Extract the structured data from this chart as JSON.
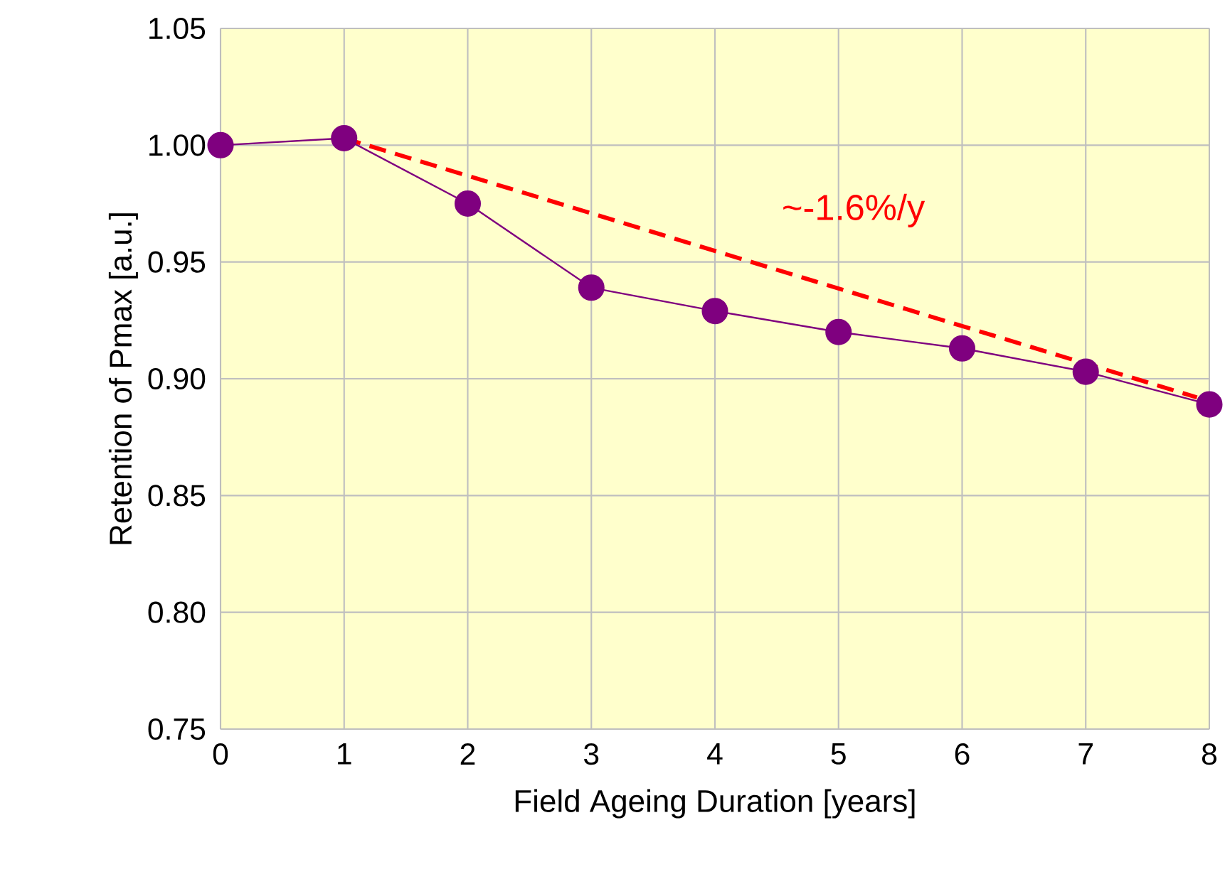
{
  "chart_data": {
    "type": "line",
    "xlabel": "Field Ageing Duration [years]",
    "ylabel": "Retention of Pmax [a.u.]",
    "x": [
      0,
      1,
      2,
      3,
      4,
      5,
      6,
      7,
      8
    ],
    "series": [
      {
        "color": "#7f007f",
        "values": [
          1.0,
          1.003,
          0.975,
          0.939,
          0.929,
          0.92,
          0.913,
          0.903,
          0.889
        ],
        "marker": "circle",
        "line_style": "solid"
      },
      {
        "type": "line",
        "color": "#ff0000",
        "x": [
          1,
          7.9
        ],
        "values": [
          1.003,
          0.892
        ],
        "marker": "none",
        "line_style": "dashed"
      }
    ],
    "annotations": [
      "~-1.6%/y"
    ],
    "xlim": [
      0,
      8
    ],
    "xticks": [
      0,
      1,
      2,
      3,
      4,
      5,
      6,
      7,
      8
    ],
    "ylim": [
      0.75,
      1.05
    ],
    "yticks": [
      {
        "value": 0.75,
        "label": "0.75"
      },
      {
        "value": 0.8,
        "label": "0.80"
      },
      {
        "value": 0.85,
        "label": "0.85"
      },
      {
        "value": 0.9,
        "label": "0.90"
      },
      {
        "value": 0.95,
        "label": "0.95"
      },
      {
        "value": 1.0,
        "label": "1.00"
      },
      {
        "value": 1.05,
        "label": "1.05"
      }
    ],
    "grid": true
  }
}
